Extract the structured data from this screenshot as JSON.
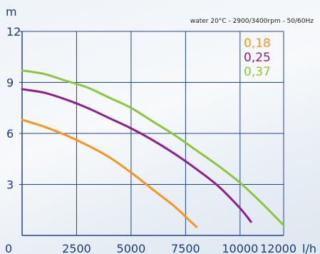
{
  "chart_data": {
    "type": "line",
    "ylabel": "m",
    "xlabel": "l/h",
    "annotation": "water 20°C - 2900/3400rpm - 50/60Hz",
    "xlim": [
      0,
      12000
    ],
    "ylim": [
      0,
      12
    ],
    "xticks": [
      "0",
      "2500",
      "5000",
      "7500",
      "10000",
      "12000"
    ],
    "xtick_values": [
      0,
      2500,
      5000,
      7500,
      10000,
      12000
    ],
    "yticks": [
      "3",
      "6",
      "9",
      "12"
    ],
    "ytick_values": [
      3,
      6,
      9,
      12
    ],
    "grid": true,
    "legend_position": "top-right",
    "series": [
      {
        "name": "0,18",
        "color": "#f7941d",
        "x": [
          0,
          1000,
          2000,
          3000,
          4000,
          5000,
          6000,
          7000,
          7500,
          8000
        ],
        "y": [
          6.8,
          6.4,
          5.9,
          5.3,
          4.6,
          3.7,
          2.7,
          1.7,
          1.1,
          0.5
        ]
      },
      {
        "name": "0,25",
        "color": "#8b1f8f",
        "x": [
          0,
          1000,
          2000,
          3000,
          4000,
          5000,
          6000,
          7000,
          8000,
          9000,
          10000,
          10500
        ],
        "y": [
          8.6,
          8.4,
          8.0,
          7.5,
          6.9,
          6.3,
          5.6,
          4.8,
          3.9,
          2.9,
          1.6,
          0.8
        ]
      },
      {
        "name": "0,37",
        "color": "#8cc63f",
        "x": [
          0,
          1000,
          2000,
          3000,
          4000,
          5000,
          6000,
          7000,
          8000,
          9000,
          10000,
          11000,
          12000
        ],
        "y": [
          9.7,
          9.5,
          9.1,
          8.7,
          8.1,
          7.5,
          6.7,
          5.9,
          5.0,
          4.1,
          3.1,
          1.9,
          0.6
        ]
      }
    ]
  }
}
